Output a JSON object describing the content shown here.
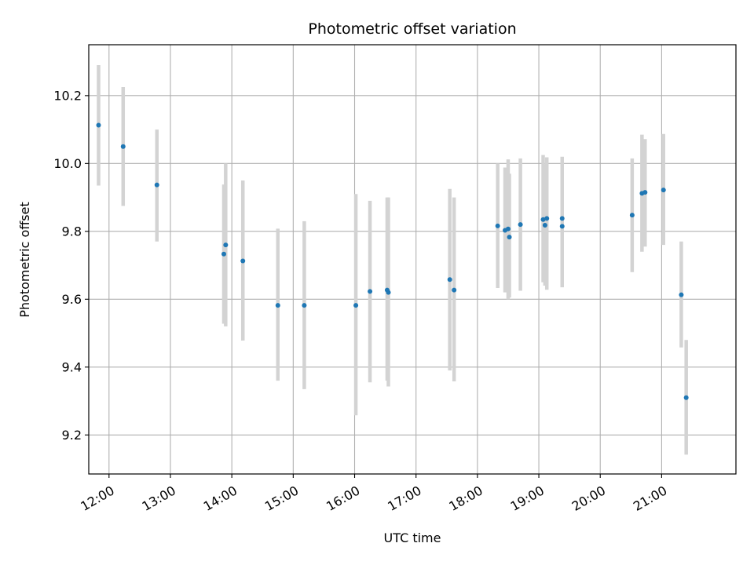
{
  "chart_data": {
    "type": "scatter",
    "title": "Photometric offset variation",
    "xlabel": "UTC time",
    "ylabel": "Photometric offset",
    "x_unit": "hour",
    "xlim": [
      11.67,
      22.21
    ],
    "ylim": [
      9.085,
      10.35
    ],
    "x_ticks": [
      {
        "value": 12,
        "label": "12:00"
      },
      {
        "value": 13,
        "label": "13:00"
      },
      {
        "value": 14,
        "label": "14:00"
      },
      {
        "value": 15,
        "label": "15:00"
      },
      {
        "value": 16,
        "label": "16:00"
      },
      {
        "value": 17,
        "label": "17:00"
      },
      {
        "value": 18,
        "label": "18:00"
      },
      {
        "value": 19,
        "label": "19:00"
      },
      {
        "value": 20,
        "label": "20:00"
      },
      {
        "value": 21,
        "label": "21:00"
      }
    ],
    "y_ticks": [
      {
        "value": 9.2,
        "label": "9.2"
      },
      {
        "value": 9.4,
        "label": "9.4"
      },
      {
        "value": 9.6,
        "label": "9.6"
      },
      {
        "value": 9.8,
        "label": "9.8"
      },
      {
        "value": 10.0,
        "label": "10.0"
      },
      {
        "value": 10.2,
        "label": "10.2"
      }
    ],
    "grid": true,
    "legend": null,
    "colors": {
      "point": "#1f77b4",
      "errorbar": "#d3d3d3",
      "grid": "#b0b0b0"
    },
    "points": [
      {
        "x": 11.83,
        "y": 10.113,
        "err_low": 9.935,
        "err_high": 10.29
      },
      {
        "x": 12.23,
        "y": 10.05,
        "err_low": 9.875,
        "err_high": 10.225
      },
      {
        "x": 12.78,
        "y": 9.937,
        "err_low": 9.77,
        "err_high": 10.1
      },
      {
        "x": 13.87,
        "y": 9.733,
        "err_low": 9.528,
        "err_high": 9.938
      },
      {
        "x": 13.9,
        "y": 9.76,
        "err_low": 9.52,
        "err_high": 10.0
      },
      {
        "x": 14.18,
        "y": 9.713,
        "err_low": 9.478,
        "err_high": 9.95
      },
      {
        "x": 14.75,
        "y": 9.582,
        "err_low": 9.36,
        "err_high": 9.808
      },
      {
        "x": 15.18,
        "y": 9.582,
        "err_low": 9.335,
        "err_high": 9.83
      },
      {
        "x": 16.02,
        "y": 9.582,
        "err_low": 9.258,
        "err_high": 9.91
      },
      {
        "x": 16.25,
        "y": 9.623,
        "err_low": 9.355,
        "err_high": 9.89
      },
      {
        "x": 16.53,
        "y": 9.627,
        "err_low": 9.36,
        "err_high": 9.9
      },
      {
        "x": 16.55,
        "y": 9.62,
        "err_low": 9.343,
        "err_high": 9.9
      },
      {
        "x": 17.55,
        "y": 9.658,
        "err_low": 9.39,
        "err_high": 9.925
      },
      {
        "x": 17.62,
        "y": 9.627,
        "err_low": 9.358,
        "err_high": 9.9
      },
      {
        "x": 18.33,
        "y": 9.816,
        "err_low": 9.633,
        "err_high": 10.0
      },
      {
        "x": 18.45,
        "y": 9.803,
        "err_low": 9.62,
        "err_high": 9.988
      },
      {
        "x": 18.5,
        "y": 9.807,
        "err_low": 9.6,
        "err_high": 10.012
      },
      {
        "x": 18.52,
        "y": 9.783,
        "err_low": 9.605,
        "err_high": 9.97
      },
      {
        "x": 18.7,
        "y": 9.82,
        "err_low": 9.625,
        "err_high": 10.015
      },
      {
        "x": 19.07,
        "y": 9.835,
        "err_low": 9.65,
        "err_high": 10.025
      },
      {
        "x": 19.1,
        "y": 9.818,
        "err_low": 9.64,
        "err_high": 9.998
      },
      {
        "x": 19.13,
        "y": 9.838,
        "err_low": 9.628,
        "err_high": 10.018
      },
      {
        "x": 19.38,
        "y": 9.838,
        "err_low": 9.655,
        "err_high": 10.02
      },
      {
        "x": 19.38,
        "y": 9.815,
        "err_low": 9.635,
        "err_high": 9.995
      },
      {
        "x": 20.52,
        "y": 9.848,
        "err_low": 9.68,
        "err_high": 10.015
      },
      {
        "x": 20.68,
        "y": 9.912,
        "err_low": 9.74,
        "err_high": 10.085
      },
      {
        "x": 20.73,
        "y": 9.915,
        "err_low": 9.755,
        "err_high": 10.072
      },
      {
        "x": 21.03,
        "y": 9.922,
        "err_low": 9.76,
        "err_high": 10.087
      },
      {
        "x": 21.32,
        "y": 9.613,
        "err_low": 9.458,
        "err_high": 9.77
      },
      {
        "x": 21.4,
        "y": 9.31,
        "err_low": 9.142,
        "err_high": 9.48
      }
    ]
  }
}
